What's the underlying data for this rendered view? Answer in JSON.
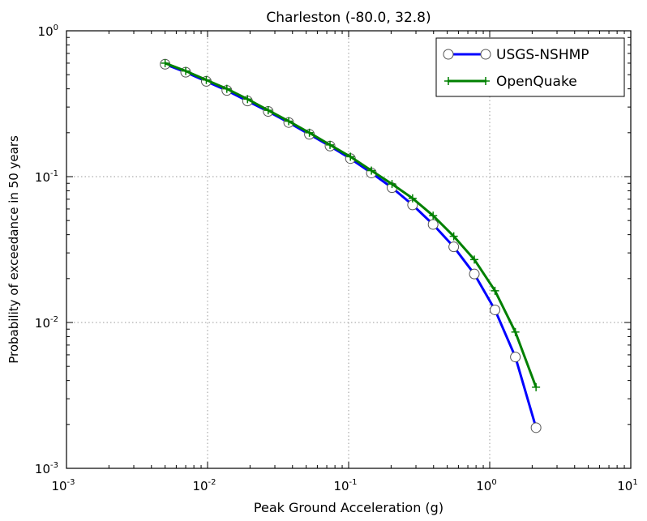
{
  "chart_data": {
    "type": "line",
    "title": "Charleston (-80.0, 32.8)",
    "xlabel": "Peak Ground Acceleration (g)",
    "ylabel": "Probability of exceedance in 50 years",
    "xscale": "log",
    "yscale": "log",
    "xlim": [
      0.001,
      10
    ],
    "ylim": [
      0.001,
      1
    ],
    "grid": true,
    "legend_position": "top-right",
    "x_ticks": [
      {
        "value": 0.001,
        "base": "10",
        "exp": "-3"
      },
      {
        "value": 0.01,
        "base": "10",
        "exp": "-2"
      },
      {
        "value": 0.1,
        "base": "10",
        "exp": "-1"
      },
      {
        "value": 1,
        "base": "10",
        "exp": "0"
      },
      {
        "value": 10,
        "base": "10",
        "exp": "1"
      }
    ],
    "y_ticks": [
      {
        "value": 0.001,
        "base": "10",
        "exp": "-3"
      },
      {
        "value": 0.01,
        "base": "10",
        "exp": "-2"
      },
      {
        "value": 0.1,
        "base": "10",
        "exp": "-1"
      },
      {
        "value": 1,
        "base": "10",
        "exp": "0"
      }
    ],
    "series": [
      {
        "name": "USGS-NSHMP",
        "color": "#0000ff",
        "marker": "circle",
        "x": [
          0.005,
          0.007,
          0.0098,
          0.0137,
          0.0192,
          0.0269,
          0.0376,
          0.0527,
          0.0738,
          0.103,
          0.145,
          0.203,
          0.284,
          0.397,
          0.556,
          0.778,
          1.09,
          1.52,
          2.13
        ],
        "y": [
          0.59,
          0.52,
          0.45,
          0.39,
          0.33,
          0.28,
          0.235,
          0.195,
          0.162,
          0.133,
          0.106,
          0.084,
          0.064,
          0.047,
          0.033,
          0.0215,
          0.0122,
          0.0058,
          0.0019
        ]
      },
      {
        "name": "OpenQuake",
        "color": "#008000",
        "marker": "plus",
        "x": [
          0.005,
          0.007,
          0.0098,
          0.0137,
          0.0192,
          0.0269,
          0.0376,
          0.0527,
          0.0738,
          0.103,
          0.145,
          0.203,
          0.284,
          0.397,
          0.556,
          0.778,
          1.09,
          1.52,
          2.13
        ],
        "y": [
          0.6,
          0.53,
          0.46,
          0.4,
          0.34,
          0.285,
          0.24,
          0.2,
          0.165,
          0.137,
          0.11,
          0.089,
          0.071,
          0.054,
          0.039,
          0.027,
          0.0165,
          0.0086,
          0.0036
        ]
      }
    ]
  }
}
